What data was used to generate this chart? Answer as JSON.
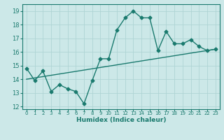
{
  "xlabel": "Humidex (Indice chaleur)",
  "ylabel": "",
  "xlim": [
    -0.5,
    23.5
  ],
  "ylim": [
    11.8,
    19.5
  ],
  "yticks": [
    12,
    13,
    14,
    15,
    16,
    17,
    18,
    19
  ],
  "xticks": [
    0,
    1,
    2,
    3,
    4,
    5,
    6,
    7,
    8,
    9,
    10,
    11,
    12,
    13,
    14,
    15,
    16,
    17,
    18,
    19,
    20,
    21,
    22,
    23
  ],
  "line1_x": [
    0,
    1,
    2,
    3,
    4,
    5,
    6,
    7,
    8,
    9,
    10,
    11,
    12,
    13,
    14,
    15,
    16,
    17,
    18,
    19,
    20,
    21,
    22,
    23
  ],
  "line1_y": [
    14.8,
    13.9,
    14.6,
    13.1,
    13.6,
    13.3,
    13.1,
    12.2,
    13.9,
    15.5,
    15.5,
    17.6,
    18.5,
    19.0,
    18.5,
    18.5,
    16.1,
    17.5,
    16.6,
    16.6,
    16.9,
    16.4,
    16.1,
    16.2
  ],
  "line2_x": [
    0,
    23
  ],
  "line2_y": [
    14.0,
    16.2
  ],
  "line_color": "#1a7a6e",
  "bg_color": "#cce8e8",
  "grid_color": "#afd4d4",
  "marker": "D",
  "markersize": 2.5,
  "linewidth": 1.0
}
